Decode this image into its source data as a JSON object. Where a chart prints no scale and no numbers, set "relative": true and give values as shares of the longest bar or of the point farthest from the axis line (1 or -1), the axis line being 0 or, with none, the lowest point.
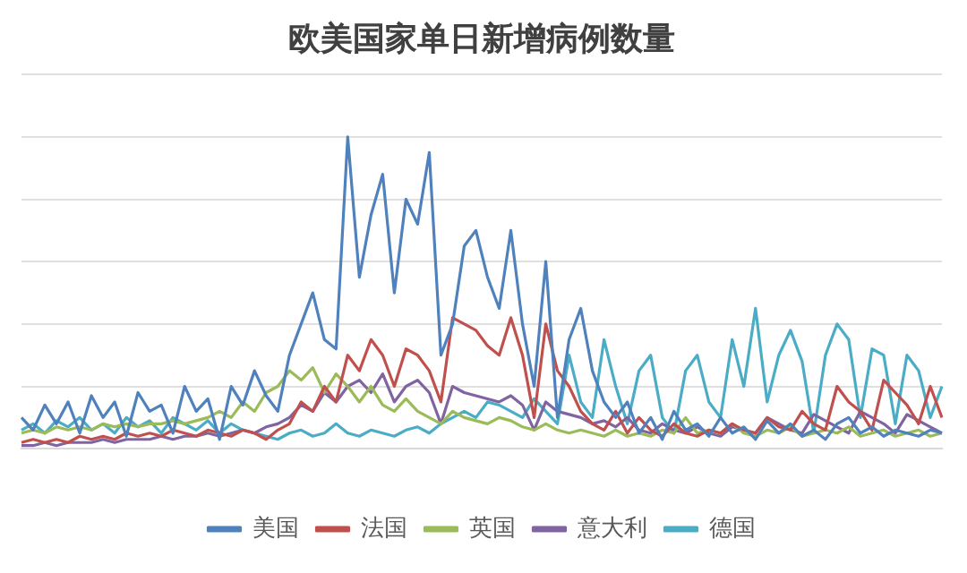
{
  "chart_data": {
    "type": "line",
    "title": "欧美国家单日新增病例数量",
    "relative": true,
    "grid": "y",
    "legend": "bottom",
    "marker": "none",
    "categories": [
      null,
      null,
      null,
      null,
      null,
      null,
      null,
      null,
      null,
      null,
      null,
      null,
      null,
      null,
      null,
      null,
      null,
      null,
      null,
      null,
      null,
      null,
      null,
      null,
      null,
      null,
      null,
      null,
      null,
      null,
      null,
      null,
      null,
      null,
      null,
      null,
      null,
      null,
      null,
      null,
      null,
      null,
      null,
      null,
      null,
      null,
      null,
      null,
      null,
      null,
      null,
      null,
      null,
      null,
      null,
      null,
      null,
      null,
      null,
      null,
      null,
      null,
      null,
      null,
      null,
      null,
      null,
      null,
      null,
      null,
      null,
      null,
      null,
      null,
      null,
      null,
      null,
      null,
      null,
      null
    ],
    "series": [
      {
        "name": "美国",
        "color": "#4f81bd",
        "values": [
          0.1,
          0.06,
          0.14,
          0.08,
          0.15,
          0.05,
          0.17,
          0.1,
          0.15,
          0.04,
          0.18,
          0.12,
          0.14,
          0.05,
          0.2,
          0.12,
          0.16,
          0.03,
          0.2,
          0.14,
          0.25,
          0.17,
          0.12,
          0.3,
          0.4,
          0.5,
          0.35,
          0.32,
          1.0,
          0.55,
          0.75,
          0.88,
          0.5,
          0.8,
          0.72,
          0.95,
          0.3,
          0.4,
          0.65,
          0.7,
          0.55,
          0.45,
          0.7,
          0.4,
          0.2,
          0.6,
          0.1,
          0.35,
          0.45,
          0.25,
          0.15,
          0.1,
          0.15,
          0.05,
          0.1,
          0.03,
          0.12,
          0.06,
          0.08,
          0.04,
          0.1,
          0.05,
          0.07,
          0.03,
          0.09,
          0.05,
          0.08,
          0.04,
          0.06,
          0.03,
          0.08,
          0.1,
          0.05,
          0.07,
          0.04,
          0.06,
          0.05,
          0.04,
          0.06,
          0.05
        ]
      },
      {
        "name": "法国",
        "color": "#c0504d",
        "values": [
          0.02,
          0.03,
          0.02,
          0.03,
          0.02,
          0.04,
          0.03,
          0.04,
          0.03,
          0.05,
          0.04,
          0.05,
          0.04,
          0.06,
          0.05,
          0.04,
          0.06,
          0.05,
          0.04,
          0.06,
          0.05,
          0.03,
          0.06,
          0.08,
          0.15,
          0.12,
          0.2,
          0.15,
          0.3,
          0.25,
          0.35,
          0.3,
          0.2,
          0.32,
          0.3,
          0.25,
          0.15,
          0.42,
          0.4,
          0.38,
          0.33,
          0.3,
          0.42,
          0.3,
          0.1,
          0.4,
          0.25,
          0.2,
          0.12,
          0.08,
          0.06,
          0.12,
          0.05,
          0.1,
          0.06,
          0.04,
          0.08,
          0.05,
          0.04,
          0.06,
          0.05,
          0.08,
          0.06,
          0.05,
          0.1,
          0.07,
          0.06,
          0.12,
          0.08,
          0.06,
          0.2,
          0.15,
          0.12,
          0.06,
          0.22,
          0.18,
          0.14,
          0.08,
          0.2,
          0.1
        ]
      },
      {
        "name": "英国",
        "color": "#9bbb59",
        "values": [
          0.05,
          0.06,
          0.05,
          0.07,
          0.06,
          0.07,
          0.06,
          0.08,
          0.07,
          0.08,
          0.07,
          0.08,
          0.08,
          0.09,
          0.08,
          0.09,
          0.1,
          0.12,
          0.1,
          0.15,
          0.12,
          0.18,
          0.2,
          0.25,
          0.22,
          0.26,
          0.18,
          0.24,
          0.2,
          0.15,
          0.2,
          0.14,
          0.12,
          0.16,
          0.12,
          0.1,
          0.08,
          0.12,
          0.1,
          0.09,
          0.08,
          0.1,
          0.09,
          0.07,
          0.06,
          0.08,
          0.06,
          0.05,
          0.06,
          0.05,
          0.04,
          0.06,
          0.04,
          0.05,
          0.04,
          0.06,
          0.05,
          0.1,
          0.05,
          0.06,
          0.05,
          0.08,
          0.05,
          0.04,
          0.06,
          0.05,
          0.07,
          0.04,
          0.05,
          0.06,
          0.05,
          0.07,
          0.04,
          0.05,
          0.06,
          0.04,
          0.05,
          0.06,
          0.04,
          0.05
        ]
      },
      {
        "name": "意大利",
        "color": "#8064a2",
        "values": [
          0.01,
          0.01,
          0.02,
          0.01,
          0.02,
          0.02,
          0.02,
          0.03,
          0.02,
          0.03,
          0.03,
          0.03,
          0.04,
          0.03,
          0.04,
          0.04,
          0.05,
          0.04,
          0.05,
          0.06,
          0.05,
          0.07,
          0.08,
          0.1,
          0.14,
          0.12,
          0.18,
          0.15,
          0.2,
          0.22,
          0.18,
          0.24,
          0.15,
          0.2,
          0.22,
          0.18,
          0.08,
          0.2,
          0.18,
          0.17,
          0.16,
          0.15,
          0.17,
          0.14,
          0.06,
          0.15,
          0.12,
          0.11,
          0.1,
          0.08,
          0.09,
          0.07,
          0.1,
          0.06,
          0.05,
          0.08,
          0.06,
          0.05,
          0.07,
          0.05,
          0.04,
          0.07,
          0.06,
          0.05,
          0.1,
          0.08,
          0.06,
          0.05,
          0.11,
          0.09,
          0.07,
          0.05,
          0.12,
          0.1,
          0.08,
          0.05,
          0.11,
          0.09,
          0.07,
          0.05
        ]
      },
      {
        "name": "德国",
        "color": "#4bacc6",
        "values": [
          0.06,
          0.08,
          0.05,
          0.09,
          0.07,
          0.1,
          0.06,
          0.08,
          0.05,
          0.1,
          0.07,
          0.09,
          0.05,
          0.1,
          0.08,
          0.06,
          0.09,
          0.05,
          0.08,
          0.06,
          0.05,
          0.04,
          0.03,
          0.05,
          0.06,
          0.04,
          0.05,
          0.08,
          0.05,
          0.04,
          0.06,
          0.05,
          0.04,
          0.06,
          0.07,
          0.05,
          0.08,
          0.1,
          0.12,
          0.1,
          0.15,
          0.14,
          0.12,
          0.1,
          0.16,
          0.12,
          0.08,
          0.3,
          0.15,
          0.1,
          0.35,
          0.2,
          0.08,
          0.25,
          0.3,
          0.1,
          0.05,
          0.25,
          0.3,
          0.15,
          0.1,
          0.35,
          0.2,
          0.45,
          0.15,
          0.3,
          0.38,
          0.28,
          0.05,
          0.3,
          0.4,
          0.35,
          0.1,
          0.32,
          0.3,
          0.08,
          0.3,
          0.25,
          0.1,
          0.2
        ]
      }
    ]
  }
}
